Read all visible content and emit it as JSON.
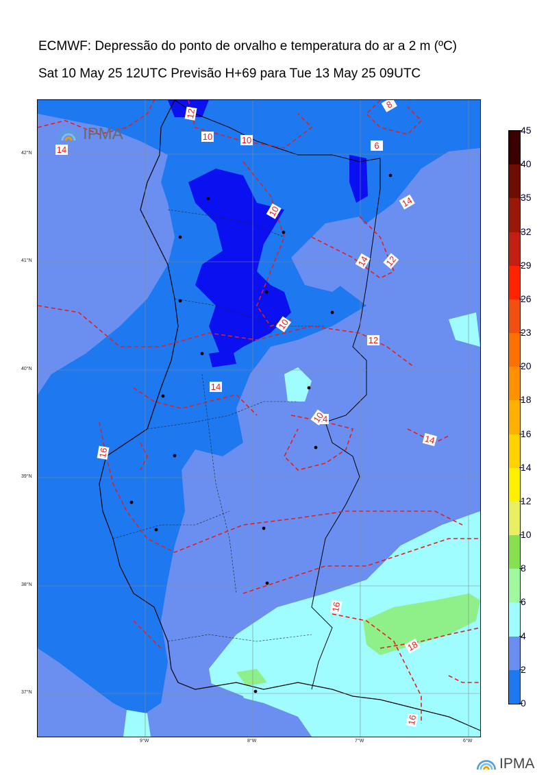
{
  "title": {
    "line1": "ECMWF: Depressão do ponto de orvalho e temperatura do ar a 2 m (ºC)",
    "line2": "Sat 10 May 25 12UTC Previsão H+69 para Tue 13 May 25 09UTC"
  },
  "map": {
    "lat_ticks": [
      "42°N",
      "41°N",
      "40°N",
      "39°N",
      "38°N",
      "37°N"
    ],
    "lon_ticks": [
      "9°W",
      "8°W",
      "7°W",
      "6°W"
    ],
    "contour_labels": [
      "12",
      "10",
      "8",
      "6",
      "14",
      "10",
      "12",
      "10",
      "14",
      "12",
      "10",
      "14",
      "14",
      "16",
      "14",
      "14",
      "16",
      "18",
      "16",
      "10"
    ],
    "cities": [
      "city",
      "city",
      "city",
      "city",
      "city",
      "city",
      "city",
      "city",
      "city",
      "city",
      "city",
      "city",
      "city",
      "city",
      "city",
      "city",
      "city"
    ],
    "colors": {
      "band_2_4": "#1e78f0",
      "band_4_6": "#6b8ff0",
      "band_6_8": "#9ffcff",
      "band_8_10": "#8ff08a",
      "band_0_2": "#0a10f0",
      "contour": "#e0201e"
    }
  },
  "colorbar": {
    "ticks": [
      "45",
      "40",
      "35",
      "32",
      "29",
      "26",
      "23",
      "20",
      "18",
      "16",
      "14",
      "12",
      "10",
      "8",
      "6",
      "4",
      "2",
      "0"
    ],
    "colors": [
      "#3a0000",
      "#6e0c00",
      "#9a1808",
      "#c41e14",
      "#ff2400",
      "#f25010",
      "#ff7000",
      "#ff9000",
      "#ffb000",
      "#ffd200",
      "#fff000",
      "#e6f060",
      "#88e050",
      "#a0f8a0",
      "#9ffcff",
      "#6b8ff0",
      "#1e78f0",
      "#0a10f0"
    ]
  },
  "logos": {
    "map_logo_text": "IPMA",
    "footer_logo_text": "IPMA"
  }
}
